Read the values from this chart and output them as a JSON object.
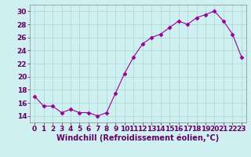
{
  "x": [
    0,
    1,
    2,
    3,
    4,
    5,
    6,
    7,
    8,
    9,
    10,
    11,
    12,
    13,
    14,
    15,
    16,
    17,
    18,
    19,
    20,
    21,
    22,
    23
  ],
  "y": [
    17,
    15.5,
    15.5,
    14.5,
    15,
    14.5,
    14.5,
    14,
    14.5,
    17.5,
    20.5,
    23,
    25,
    26,
    26.5,
    27.5,
    28.5,
    28,
    29,
    29.5,
    30,
    28.5,
    26.5,
    23
  ],
  "line_color": "#990099",
  "marker": "D",
  "marker_size": 2.5,
  "bg_color": "#cff0f0",
  "grid_color": "#b0d8d8",
  "xlabel": "Windchill (Refroidissement éolien,°C)",
  "xlabel_fontsize": 7,
  "tick_fontsize": 6.5,
  "ylim": [
    13,
    31
  ],
  "xlim": [
    -0.5,
    23.5
  ],
  "yticks": [
    14,
    16,
    18,
    20,
    22,
    24,
    26,
    28,
    30
  ],
  "xticks": [
    0,
    1,
    2,
    3,
    4,
    5,
    6,
    7,
    8,
    9,
    10,
    11,
    12,
    13,
    14,
    15,
    16,
    17,
    18,
    19,
    20,
    21,
    22,
    23
  ]
}
